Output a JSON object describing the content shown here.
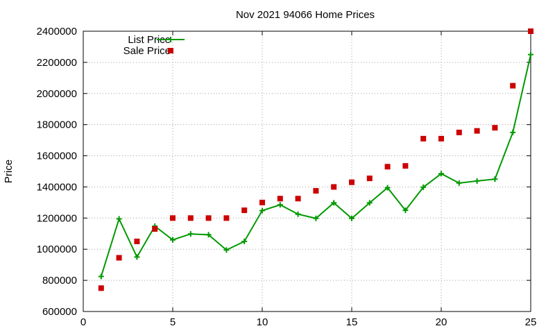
{
  "chart_data": {
    "type": "line",
    "title": "Nov 2021 94066 Home Prices",
    "xlabel": "",
    "ylabel": "Price",
    "xlim": [
      0,
      25
    ],
    "ylim": [
      600000,
      2400000
    ],
    "xticks": [
      "0",
      "5",
      "10",
      "15",
      "20",
      "25"
    ],
    "yticks": [
      "600000",
      "800000",
      "1000000",
      "1200000",
      "1400000",
      "1600000",
      "1800000",
      "2000000",
      "2200000",
      "2400000"
    ],
    "grid": true,
    "legend_position": "top-left",
    "x": [
      1,
      2,
      3,
      4,
      5,
      6,
      7,
      8,
      9,
      10,
      11,
      12,
      13,
      14,
      15,
      16,
      17,
      18,
      19,
      20,
      21,
      22,
      23,
      24,
      25
    ],
    "series": [
      {
        "name": "List Price",
        "style": "linespoints",
        "color": "#009900",
        "values": [
          825000,
          1195000,
          950000,
          1148000,
          1060000,
          1098000,
          1093000,
          995000,
          1050000,
          1248000,
          1285000,
          1225000,
          1198000,
          1298000,
          1198000,
          1298000,
          1395000,
          1250000,
          1398000,
          1485000,
          1425000,
          1438000,
          1450000,
          1750000,
          2250000
        ]
      },
      {
        "name": "Sale Price",
        "style": "points",
        "color": "#cc0000",
        "values": [
          750000,
          945000,
          1050000,
          1130000,
          1200000,
          1200000,
          1200000,
          1200000,
          1250000,
          1300000,
          1325000,
          1325000,
          1375000,
          1400000,
          1430000,
          1455000,
          1530000,
          1535000,
          1710000,
          1710000,
          1750000,
          1760000,
          1780000,
          2050000,
          2400000
        ]
      }
    ]
  }
}
